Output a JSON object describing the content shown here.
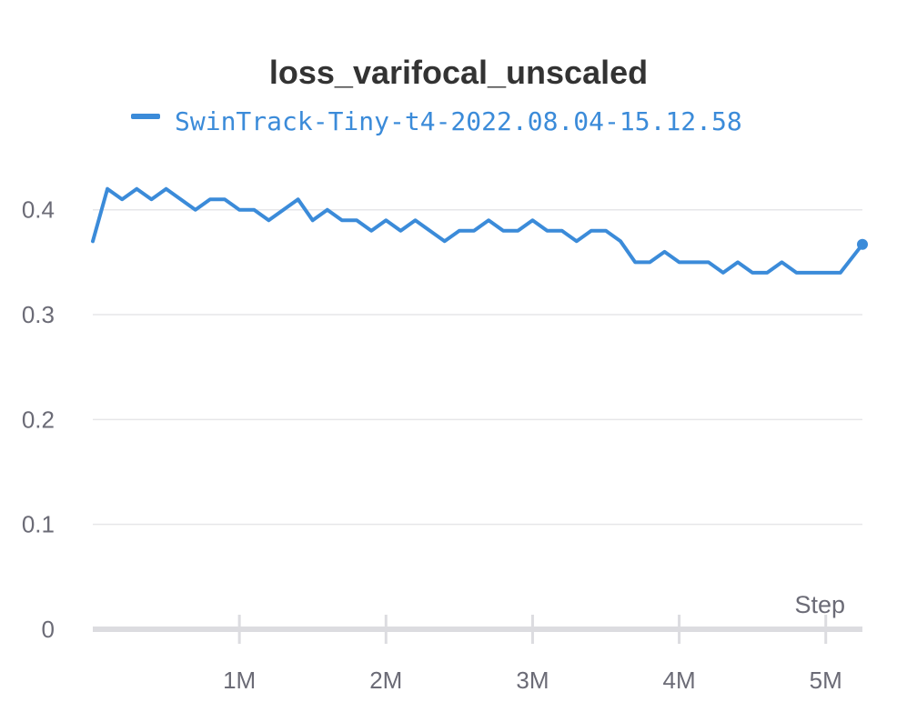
{
  "chart_data": {
    "type": "line",
    "title": "loss_varifocal_unscaled",
    "xlabel": "Step",
    "ylabel": "",
    "xlim": [
      0,
      5250000
    ],
    "ylim": [
      0,
      0.47
    ],
    "grid": true,
    "legend_position": "top",
    "x_ticks": [
      {
        "value": 1000000,
        "label": "1M"
      },
      {
        "value": 2000000,
        "label": "2M"
      },
      {
        "value": 3000000,
        "label": "3M"
      },
      {
        "value": 4000000,
        "label": "4M"
      },
      {
        "value": 5000000,
        "label": "5M"
      }
    ],
    "y_ticks": [
      {
        "value": 0,
        "label": "0"
      },
      {
        "value": 0.1,
        "label": "0.1"
      },
      {
        "value": 0.2,
        "label": "0.2"
      },
      {
        "value": 0.3,
        "label": "0.3"
      },
      {
        "value": 0.4,
        "label": "0.4"
      }
    ],
    "series": [
      {
        "name": "SwinTrack-Tiny-t4-2022.08.04-15.12.58",
        "color": "#3b8bd9",
        "x": [
          0,
          100000,
          200000,
          300000,
          400000,
          500000,
          600000,
          700000,
          800000,
          900000,
          1000000,
          1100000,
          1200000,
          1300000,
          1400000,
          1500000,
          1600000,
          1700000,
          1800000,
          1900000,
          2000000,
          2100000,
          2200000,
          2300000,
          2400000,
          2500000,
          2600000,
          2700000,
          2800000,
          2900000,
          3000000,
          3100000,
          3200000,
          3300000,
          3400000,
          3500000,
          3600000,
          3700000,
          3800000,
          3900000,
          4000000,
          4100000,
          4200000,
          4300000,
          4400000,
          4500000,
          4600000,
          4700000,
          4800000,
          4900000,
          5000000,
          5100000,
          5250000
        ],
        "values": [
          0.37,
          0.42,
          0.41,
          0.42,
          0.41,
          0.42,
          0.41,
          0.4,
          0.41,
          0.41,
          0.4,
          0.4,
          0.39,
          0.4,
          0.41,
          0.39,
          0.4,
          0.39,
          0.39,
          0.38,
          0.39,
          0.38,
          0.39,
          0.38,
          0.37,
          0.38,
          0.38,
          0.39,
          0.38,
          0.38,
          0.39,
          0.38,
          0.38,
          0.37,
          0.38,
          0.38,
          0.37,
          0.35,
          0.35,
          0.36,
          0.35,
          0.35,
          0.35,
          0.34,
          0.35,
          0.34,
          0.34,
          0.35,
          0.34,
          0.34,
          0.34,
          0.34,
          0.367
        ]
      }
    ]
  }
}
